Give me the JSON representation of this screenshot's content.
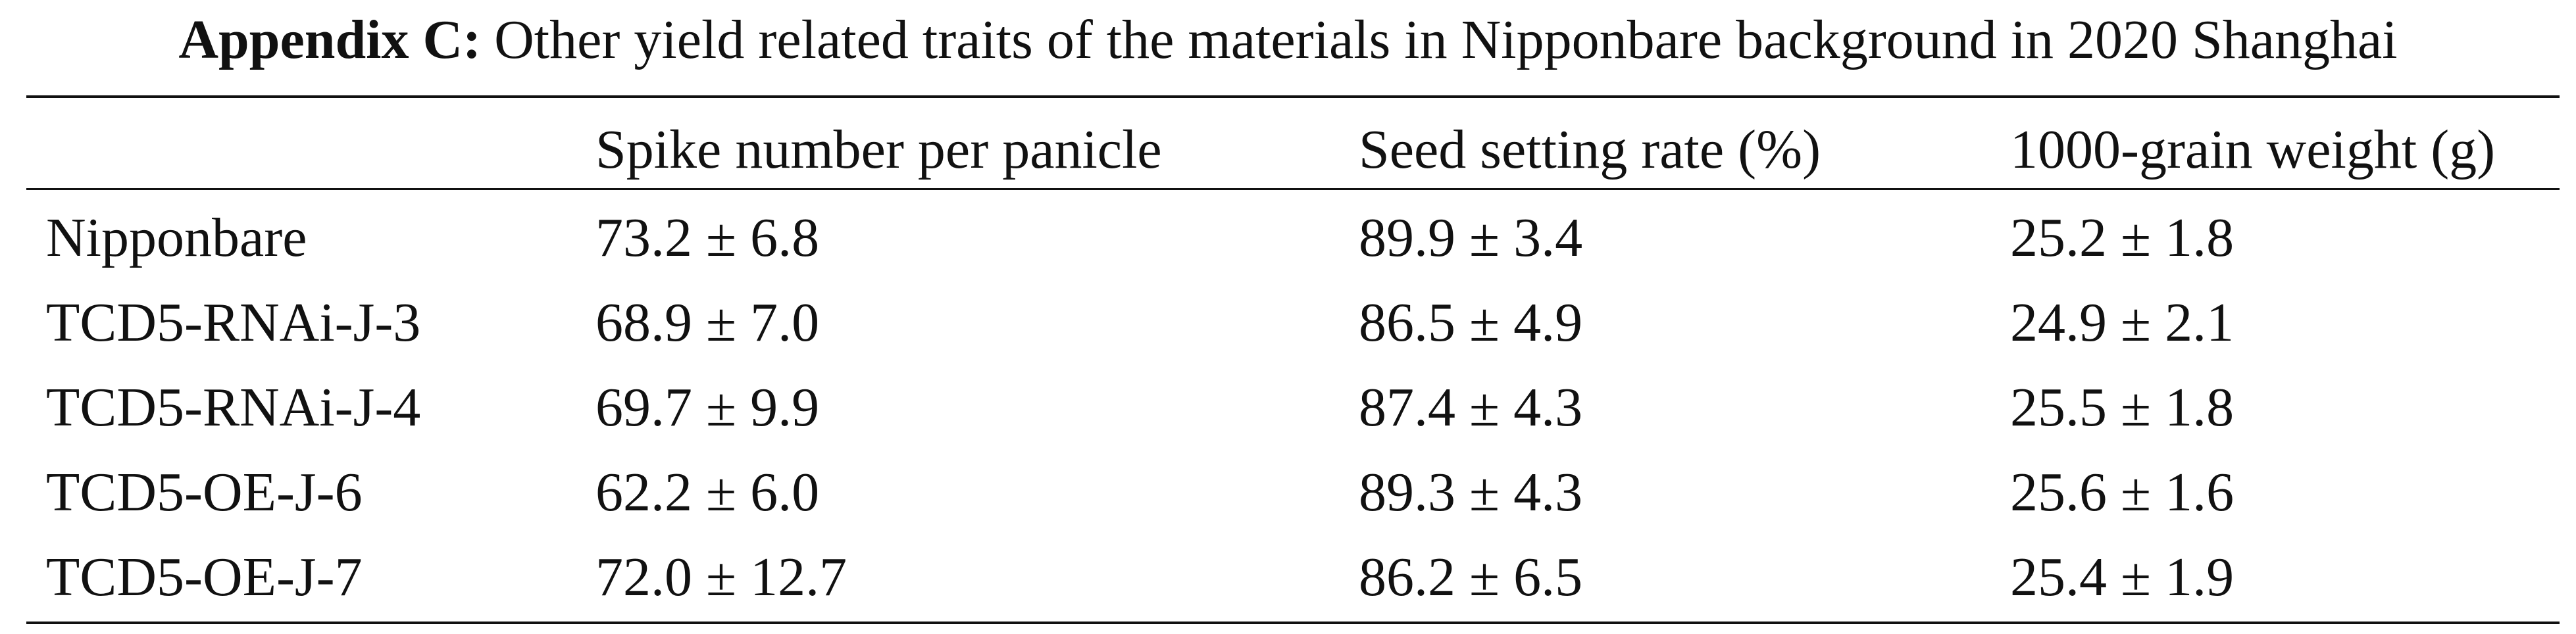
{
  "title": {
    "label": "Appendix C:",
    "text": "Other yield related traits of the materials in Nipponbare background in 2020 Shanghai"
  },
  "table": {
    "header": [
      "",
      "Spike number per panicle",
      "Seed setting rate (%)",
      "1000-grain weight (g)"
    ],
    "rows": [
      [
        "Nipponbare",
        "73.2 ± 6.8",
        "89.9 ± 3.4",
        "25.2 ± 1.8"
      ],
      [
        "TCD5-RNAi-J-3",
        "68.9 ± 7.0",
        "86.5 ± 4.9",
        "24.9 ± 2.1"
      ],
      [
        "TCD5-RNAi-J-4",
        "69.7 ± 9.9",
        "87.4 ± 4.3",
        "25.5 ± 1.8"
      ],
      [
        "TCD5-OE-J-6",
        "62.2 ± 6.0",
        "89.3 ± 4.3",
        "25.6 ± 1.6"
      ],
      [
        "TCD5-OE-J-7",
        "72.0 ± 12.7",
        "86.2 ± 6.5",
        "25.4 ± 1.9"
      ]
    ]
  }
}
